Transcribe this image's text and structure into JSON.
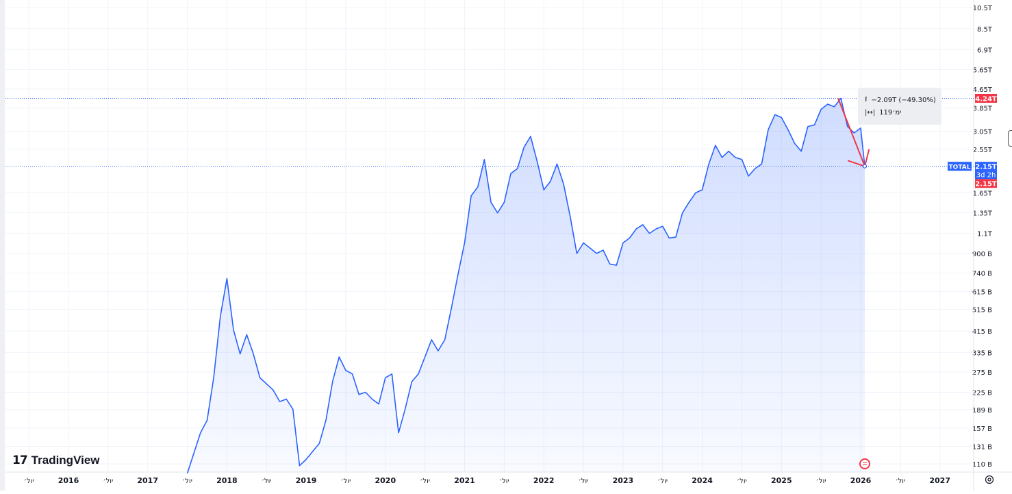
{
  "chart_data": {
    "type": "area",
    "symbol": "TOTAL",
    "y_scale": "log",
    "y_ticks": [
      "10.5T",
      "8.5T",
      "6.9T",
      "5.65T",
      "4.65T",
      "3.85T",
      "3.05T",
      "2.55T",
      "1.65T",
      "1.35T",
      "1.1T",
      "900 B",
      "740 B",
      "615 B",
      "515 B",
      "415 B",
      "335 B",
      "275 B",
      "225 B",
      "189 B",
      "157 B",
      "131 B",
      "110 B"
    ],
    "x_ticks": [
      "יול׳",
      "2016",
      "יול׳",
      "2017",
      "יול׳",
      "2018",
      "יול׳",
      "2019",
      "יול׳",
      "2020",
      "יול׳",
      "2021",
      "יול׳",
      "2022",
      "יול׳",
      "2023",
      "יול׳",
      "2024",
      "יול׳",
      "2025",
      "יול׳",
      "2026",
      "יול׳",
      "2027"
    ],
    "series": [
      {
        "values": [
          [
            "2017-07",
            100
          ],
          [
            "2017-09",
            150
          ],
          [
            "2017-10",
            170
          ],
          [
            "2017-11",
            260
          ],
          [
            "2017-12",
            480
          ],
          [
            "2018-01",
            700
          ],
          [
            "2018-02",
            420
          ],
          [
            "2018-03",
            330
          ],
          [
            "2018-04",
            400
          ],
          [
            "2018-05",
            330
          ],
          [
            "2018-06",
            260
          ],
          [
            "2018-08",
            230
          ],
          [
            "2018-09",
            205
          ],
          [
            "2018-10",
            210
          ],
          [
            "2018-11",
            190
          ],
          [
            "2018-12",
            108
          ],
          [
            "2019-01",
            115
          ],
          [
            "2019-03",
            135
          ],
          [
            "2019-04",
            170
          ],
          [
            "2019-05",
            250
          ],
          [
            "2019-06",
            320
          ],
          [
            "2019-07",
            280
          ],
          [
            "2019-08",
            270
          ],
          [
            "2019-09",
            220
          ],
          [
            "2019-10",
            225
          ],
          [
            "2019-11",
            210
          ],
          [
            "2019-12",
            200
          ],
          [
            "2020-01",
            260
          ],
          [
            "2020-02",
            270
          ],
          [
            "2020-03",
            150
          ],
          [
            "2020-04",
            190
          ],
          [
            "2020-05",
            250
          ],
          [
            "2020-06",
            270
          ],
          [
            "2020-07",
            320
          ],
          [
            "2020-08",
            380
          ],
          [
            "2020-09",
            340
          ],
          [
            "2020-10",
            380
          ],
          [
            "2020-11",
            520
          ],
          [
            "2020-12",
            730
          ],
          [
            "2021-01",
            1000
          ],
          [
            "2021-02",
            1600
          ],
          [
            "2021-03",
            1750
          ],
          [
            "2021-04",
            2300
          ],
          [
            "2021-05",
            1500
          ],
          [
            "2021-06",
            1350
          ],
          [
            "2021-07",
            1500
          ],
          [
            "2021-08",
            2000
          ],
          [
            "2021-09",
            2100
          ],
          [
            "2021-10",
            2600
          ],
          [
            "2021-11",
            2900
          ],
          [
            "2021-12",
            2250
          ],
          [
            "2022-01",
            1700
          ],
          [
            "2022-02",
            1850
          ],
          [
            "2022-03",
            2200
          ],
          [
            "2022-04",
            1800
          ],
          [
            "2022-05",
            1300
          ],
          [
            "2022-06",
            900
          ],
          [
            "2022-07",
            1000
          ],
          [
            "2022-08",
            950
          ],
          [
            "2022-09",
            900
          ],
          [
            "2022-10",
            930
          ],
          [
            "2022-11",
            810
          ],
          [
            "2022-12",
            800
          ],
          [
            "2023-01",
            1000
          ],
          [
            "2023-02",
            1050
          ],
          [
            "2023-03",
            1150
          ],
          [
            "2023-04",
            1200
          ],
          [
            "2023-05",
            1100
          ],
          [
            "2023-06",
            1150
          ],
          [
            "2023-07",
            1180
          ],
          [
            "2023-08",
            1050
          ],
          [
            "2023-09",
            1060
          ],
          [
            "2023-10",
            1350
          ],
          [
            "2023-11",
            1500
          ],
          [
            "2023-12",
            1650
          ],
          [
            "2024-01",
            1700
          ],
          [
            "2024-02",
            2200
          ],
          [
            "2024-03",
            2650
          ],
          [
            "2024-04",
            2350
          ],
          [
            "2024-05",
            2500
          ],
          [
            "2024-06",
            2350
          ],
          [
            "2024-07",
            2300
          ],
          [
            "2024-08",
            1950
          ],
          [
            "2024-09",
            2100
          ],
          [
            "2024-10",
            2200
          ],
          [
            "2024-11",
            3100
          ],
          [
            "2024-12",
            3600
          ],
          [
            "2025-01",
            3500
          ],
          [
            "2025-02",
            3100
          ],
          [
            "2025-03",
            2700
          ],
          [
            "2025-04",
            2500
          ],
          [
            "2025-05",
            3200
          ],
          [
            "2025-06",
            3250
          ],
          [
            "2025-07",
            3800
          ],
          [
            "2025-08",
            4000
          ],
          [
            "2025-09",
            3900
          ],
          [
            "2025-10",
            4240
          ],
          [
            "2025-11",
            3200
          ],
          [
            "2025-12",
            3000
          ],
          [
            "2026-01",
            3150
          ],
          [
            "2026-01-20",
            2150
          ]
        ]
      }
    ],
    "price_labels": {
      "symbol_tag": "TOTAL",
      "current": "2.15T",
      "countdown": "3d 2h",
      "measure_top": "4.24T",
      "measure_bottom": "2.15T"
    },
    "measure_tool": {
      "from_value": 4240,
      "to_value": 2150,
      "change_text": "−2.09T (−49.30%)",
      "bars_text": "119ימ׳"
    },
    "colors": {
      "line": "#2962ff",
      "area_top": "#2962ff",
      "measure_arrow": "#f23645",
      "price_tag_bg": "#2962ff",
      "measure_tag_bg": "#f23645"
    }
  },
  "branding": {
    "logo_text": "TradingView",
    "logo_mark": "17"
  }
}
